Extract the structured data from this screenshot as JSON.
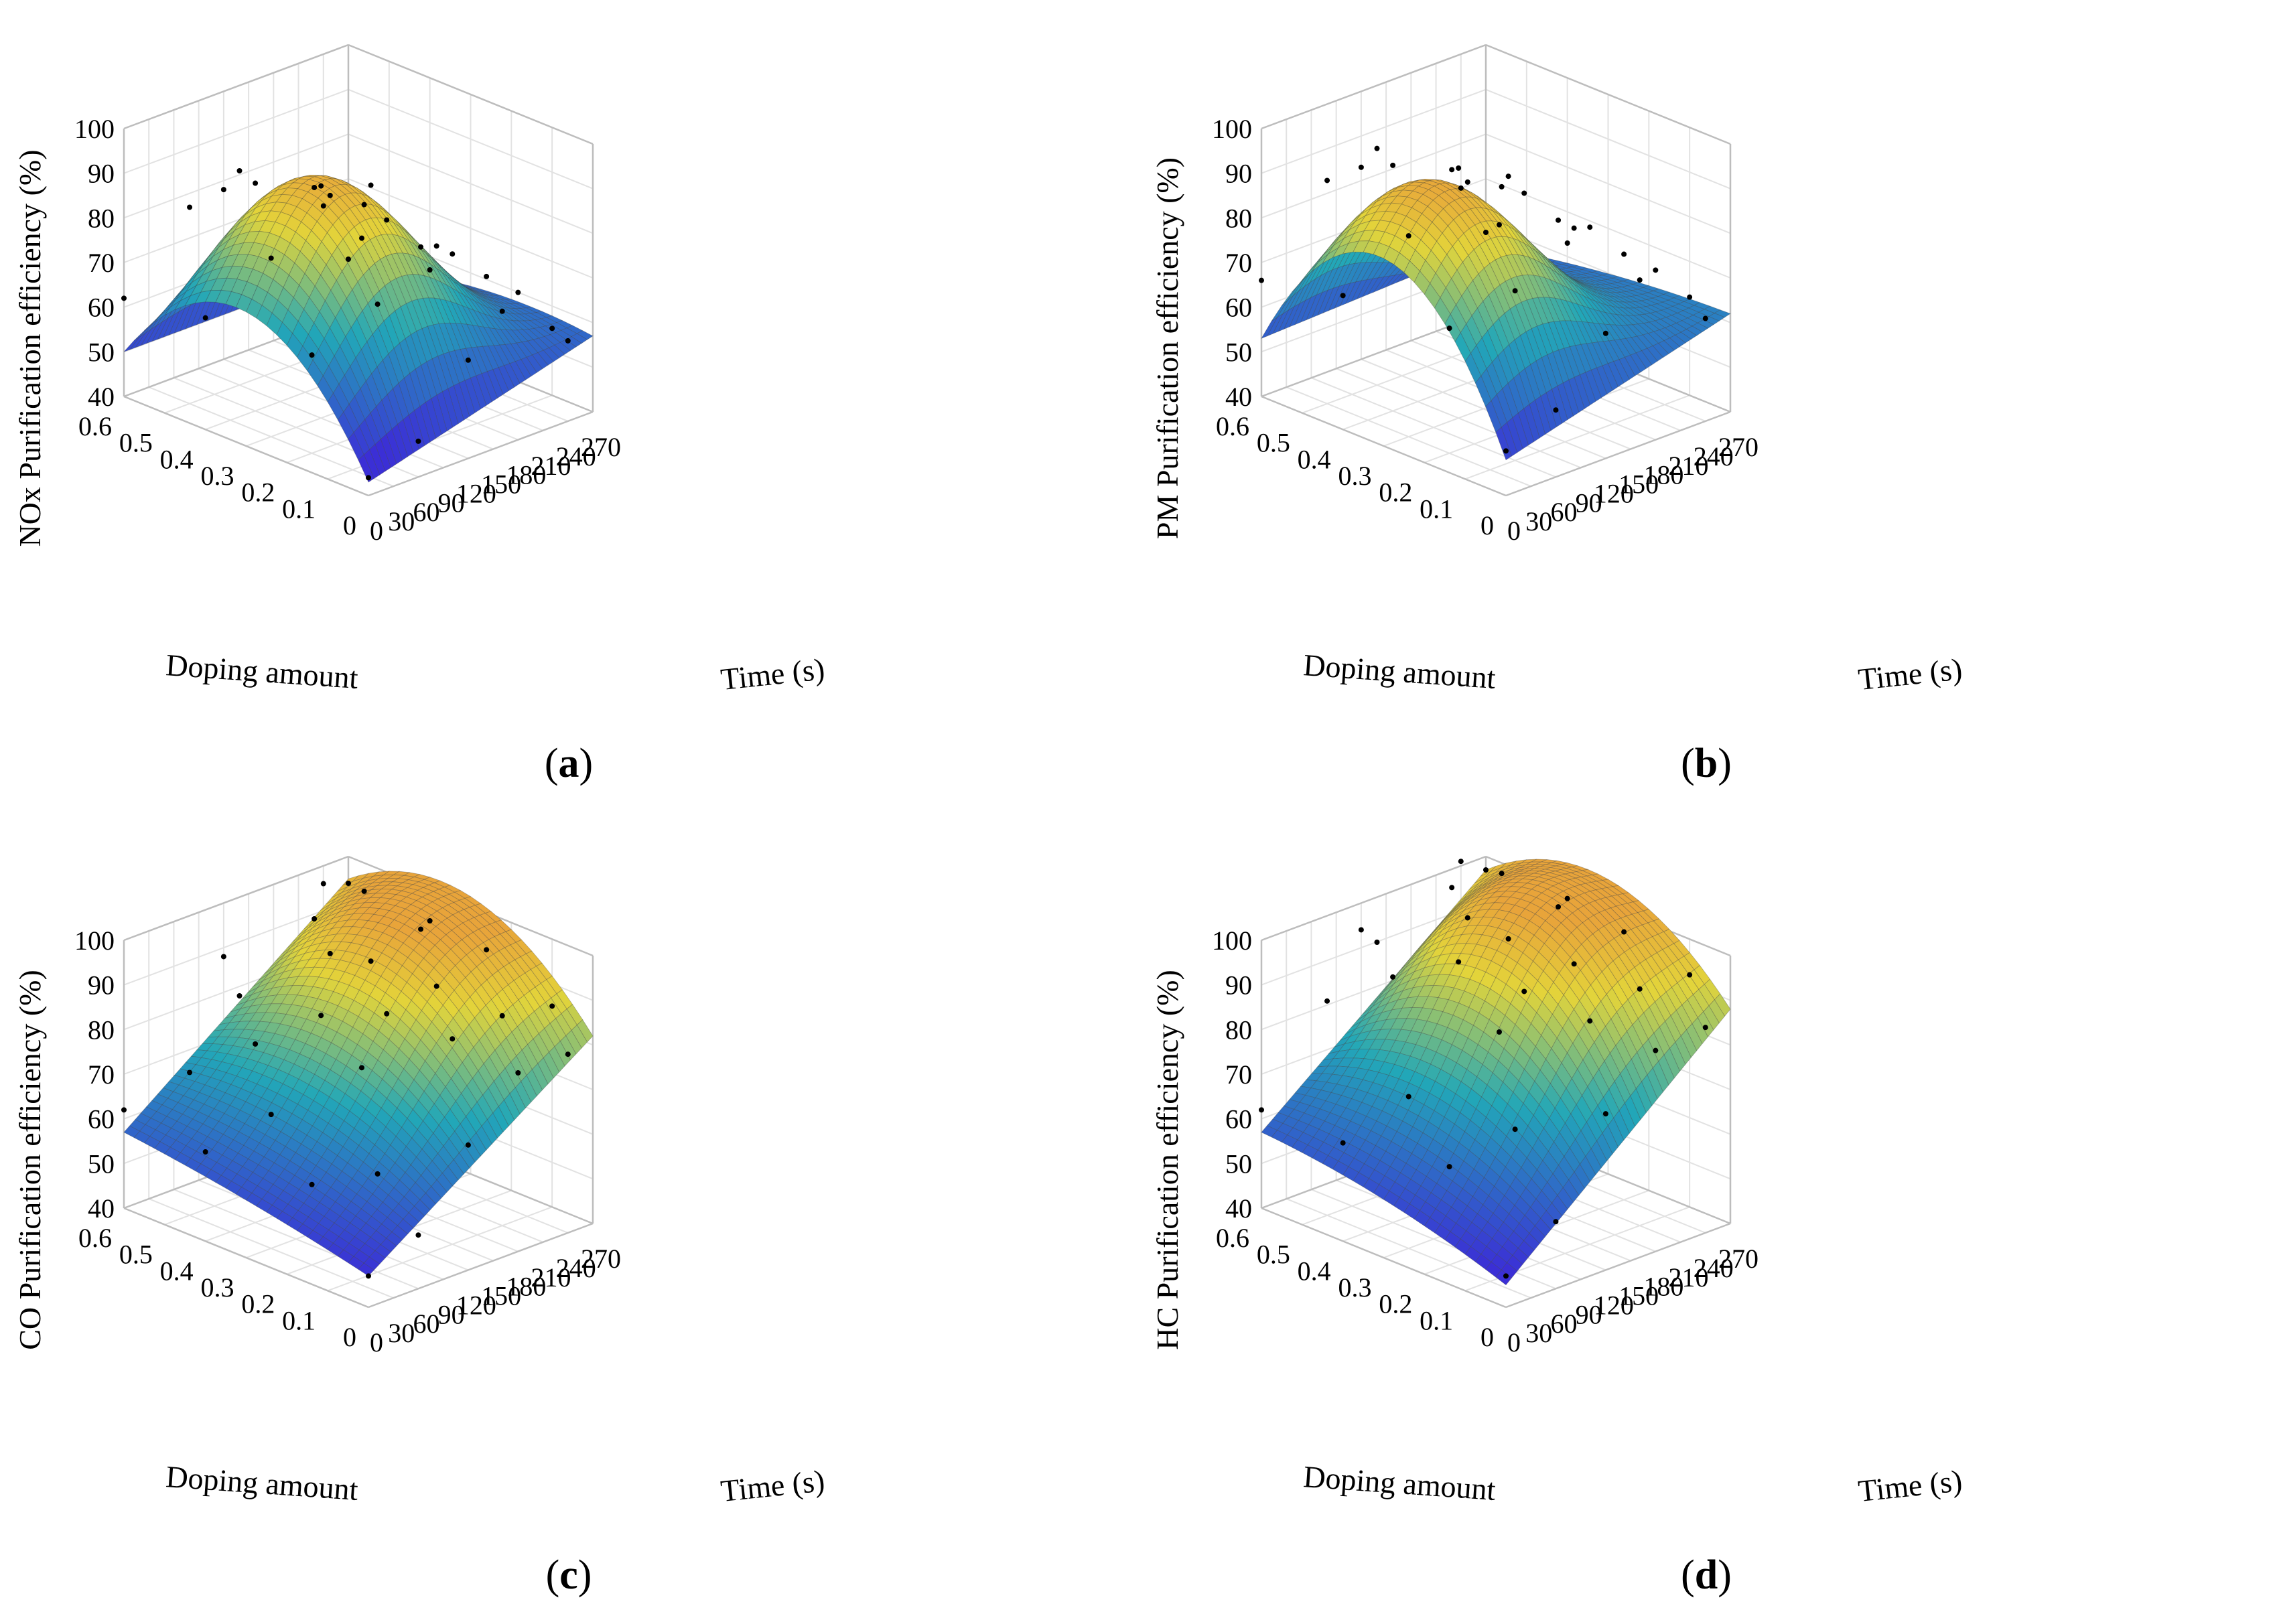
{
  "figure": {
    "colors": {
      "low": "#3b2fd6",
      "mid": "#22a7b8",
      "high": "#e3d43a",
      "peak": "#e8a43a",
      "box": "#bdbdbd",
      "grid": "#e2e2e2",
      "point": "#000000"
    },
    "panels": [
      {
        "id": "a",
        "label": "a",
        "chart_data": {
          "type": "surface3d",
          "title": "",
          "zlabel": "NOx Purification efficiency (%)",
          "xlabel": "Doping amount",
          "ylabel": "Time (s)",
          "x_ticks": [
            "0.6",
            "0.5",
            "0.4",
            "0.3",
            "0.2",
            "0.1",
            "0"
          ],
          "y_ticks": [
            "0",
            "30",
            "60",
            "90",
            "120",
            "150",
            "180",
            "210",
            "240",
            "270"
          ],
          "z_ticks": [
            "40",
            "50",
            "60",
            "70",
            "80",
            "90",
            "100"
          ],
          "xlim": [
            0,
            0.6
          ],
          "ylim": [
            0,
            270
          ],
          "zlim": [
            40,
            100
          ],
          "corner_values": {
            "x06_t0": 50,
            "x0_t0": 43,
            "x06_t270": 50,
            "x0_t270": 57
          },
          "peak": {
            "x": 0.3,
            "t": 90,
            "z": 93
          },
          "t_peak": 90,
          "x_peak": 0.3,
          "scatter": [
            [
              0.6,
              0,
              62
            ],
            [
              0.5,
              30,
              84
            ],
            [
              0.4,
              60,
              91
            ],
            [
              0.3,
              90,
              92
            ],
            [
              0.2,
              120,
              86
            ],
            [
              0.1,
              150,
              80
            ],
            [
              0,
              180,
              73
            ],
            [
              0.5,
              90,
              88
            ],
            [
              0.4,
              150,
              82
            ],
            [
              0.3,
              210,
              70
            ],
            [
              0.2,
              240,
              65
            ],
            [
              0.1,
              60,
              75
            ],
            [
              0,
              120,
              62
            ],
            [
              0.5,
              180,
              78
            ],
            [
              0.4,
              270,
              57
            ],
            [
              0.3,
              30,
              80
            ],
            [
              0.2,
              30,
              62
            ],
            [
              0.1,
              270,
              55
            ],
            [
              0,
              60,
              48
            ],
            [
              0.6,
              120,
              78
            ],
            [
              0.6,
              240,
              66
            ],
            [
              0.2,
              180,
              76
            ],
            [
              0.5,
              240,
              70
            ],
            [
              0.1,
              210,
              63
            ],
            [
              0.3,
              150,
              88
            ],
            [
              0,
              240,
              58
            ],
            [
              0.4,
              0,
              65
            ],
            [
              0.2,
              90,
              84
            ],
            [
              0,
              0,
              44
            ],
            [
              0.6,
              270,
              52
            ]
          ]
        }
      },
      {
        "id": "b",
        "label": "b",
        "chart_data": {
          "type": "surface3d",
          "title": "",
          "zlabel": "PM Purification efficiency (%)",
          "xlabel": "Doping amount",
          "ylabel": "Time (s)",
          "x_ticks": [
            "0.6",
            "0.5",
            "0.4",
            "0.3",
            "0.2",
            "0.1",
            "0"
          ],
          "y_ticks": [
            "0",
            "30",
            "60",
            "90",
            "120",
            "150",
            "180",
            "210",
            "240",
            "270"
          ],
          "z_ticks": [
            "40",
            "50",
            "60",
            "70",
            "80",
            "90",
            "100"
          ],
          "xlim": [
            0,
            0.6
          ],
          "ylim": [
            0,
            270
          ],
          "zlim": [
            40,
            100
          ],
          "corner_values": {
            "x06_t0": 53,
            "x0_t0": 48,
            "x06_t270": 55,
            "x0_t270": 62
          },
          "peak": {
            "x": 0.35,
            "t": 60,
            "z": 94
          },
          "t_peak": 60,
          "x_peak": 0.35,
          "scatter": [
            [
              0.6,
              0,
              66
            ],
            [
              0.5,
              30,
              90
            ],
            [
              0.4,
              60,
              95
            ],
            [
              0.3,
              90,
              96
            ],
            [
              0.2,
              120,
              92
            ],
            [
              0.1,
              150,
              86
            ],
            [
              0,
              180,
              78
            ],
            [
              0.5,
              90,
              93
            ],
            [
              0.4,
              150,
              85
            ],
            [
              0.3,
              210,
              76
            ],
            [
              0.2,
              240,
              70
            ],
            [
              0.1,
              60,
              78
            ],
            [
              0,
              120,
              68
            ],
            [
              0.5,
              180,
              82
            ],
            [
              0.4,
              270,
              63
            ],
            [
              0.3,
              30,
              85
            ],
            [
              0.2,
              30,
              68
            ],
            [
              0.1,
              270,
              62
            ],
            [
              0,
              60,
              55
            ],
            [
              0.6,
              120,
              83
            ],
            [
              0.6,
              240,
              70
            ],
            [
              0.2,
              180,
              80
            ],
            [
              0.5,
              240,
              74
            ],
            [
              0.1,
              210,
              70
            ],
            [
              0.3,
              150,
              90
            ],
            [
              0,
              240,
              63
            ],
            [
              0.4,
              0,
              70
            ],
            [
              0.2,
              90,
              87
            ],
            [
              0,
              0,
              50
            ],
            [
              0.6,
              270,
              58
            ]
          ]
        }
      },
      {
        "id": "c",
        "label": "c",
        "chart_data": {
          "type": "surface3d",
          "title": "",
          "zlabel": "CO Purification efficiency (%)",
          "xlabel": "Doping amount",
          "ylabel": "Time (s)",
          "x_ticks": [
            "0.6",
            "0.5",
            "0.4",
            "0.3",
            "0.2",
            "0.1",
            "0"
          ],
          "y_ticks": [
            "0",
            "30",
            "60",
            "90",
            "120",
            "150",
            "180",
            "210",
            "240",
            "270"
          ],
          "z_ticks": [
            "40",
            "50",
            "60",
            "70",
            "80",
            "90",
            "100"
          ],
          "xlim": [
            0,
            0.6
          ],
          "ylim": [
            0,
            270
          ],
          "zlim": [
            40,
            100
          ],
          "corner_values": {
            "x06_t0": 57,
            "x0_t0": 47,
            "x06_t270": 95,
            "x0_t270": 82
          },
          "peak": {
            "x": 0.35,
            "t": 200,
            "z": 99
          },
          "t_peak": 200,
          "x_peak": 0.35,
          "scatter": [
            [
              0.6,
              0,
              62
            ],
            [
              0.5,
              30,
              72
            ],
            [
              0.4,
              60,
              80
            ],
            [
              0.3,
              90,
              88
            ],
            [
              0.2,
              120,
              90
            ],
            [
              0.1,
              150,
              86
            ],
            [
              0,
              180,
              80
            ],
            [
              0.5,
              90,
              85
            ],
            [
              0.4,
              150,
              94
            ],
            [
              0.3,
              210,
              99
            ],
            [
              0.2,
              240,
              96
            ],
            [
              0.1,
              60,
              62
            ],
            [
              0,
              120,
              68
            ],
            [
              0.5,
              180,
              96
            ],
            [
              0.4,
              270,
              93
            ],
            [
              0.3,
              30,
              70
            ],
            [
              0.2,
              30,
              58
            ],
            [
              0.1,
              270,
              85
            ],
            [
              0,
              60,
              52
            ],
            [
              0.6,
              120,
              88
            ],
            [
              0.6,
              240,
              96
            ],
            [
              0.2,
              180,
              92
            ],
            [
              0.5,
              240,
              98
            ],
            [
              0.1,
              210,
              87
            ],
            [
              0.3,
              150,
              96
            ],
            [
              0,
              240,
              80
            ],
            [
              0.4,
              0,
              60
            ],
            [
              0.2,
              90,
              80
            ],
            [
              0,
              0,
              47
            ],
            [
              0.6,
              270,
              94
            ]
          ]
        }
      },
      {
        "id": "d",
        "label": "d",
        "chart_data": {
          "type": "surface3d",
          "title": "",
          "zlabel": "HC Purification efficiency (%)",
          "xlabel": "Doping amount",
          "ylabel": "Time (s)",
          "x_ticks": [
            "0.6",
            "0.5",
            "0.4",
            "0.3",
            "0.2",
            "0.1",
            "0"
          ],
          "y_ticks": [
            "0",
            "30",
            "60",
            "90",
            "120",
            "150",
            "180",
            "210",
            "240",
            "270"
          ],
          "z_ticks": [
            "40",
            "50",
            "60",
            "70",
            "80",
            "90",
            "100"
          ],
          "xlim": [
            0,
            0.6
          ],
          "ylim": [
            0,
            270
          ],
          "zlim": [
            40,
            100
          ],
          "corner_values": {
            "x06_t0": 57,
            "x0_t0": 45,
            "x06_t270": 97,
            "x0_t270": 88
          },
          "peak": {
            "x": 0.3,
            "t": 180,
            "z": 104
          },
          "t_peak": 180,
          "x_peak": 0.3,
          "scatter": [
            [
              0.6,
              0,
              62
            ],
            [
              0.5,
              30,
              88
            ],
            [
              0.4,
              60,
              95
            ],
            [
              0.3,
              90,
              100
            ],
            [
              0.2,
              120,
              95
            ],
            [
              0.1,
              150,
              90
            ],
            [
              0,
              180,
              85
            ],
            [
              0.5,
              90,
              97
            ],
            [
              0.4,
              150,
              102
            ],
            [
              0.3,
              210,
              104
            ],
            [
              0.2,
              240,
              100
            ],
            [
              0.1,
              60,
              72
            ],
            [
              0,
              120,
              75
            ],
            [
              0.5,
              180,
              103
            ],
            [
              0.4,
              270,
              98
            ],
            [
              0.3,
              30,
              74
            ],
            [
              0.2,
              30,
              62
            ],
            [
              0.1,
              270,
              92
            ],
            [
              0,
              60,
              55
            ],
            [
              0.6,
              120,
              94
            ],
            [
              0.6,
              240,
              101
            ],
            [
              0.2,
              180,
              97
            ],
            [
              0.5,
              240,
              102
            ],
            [
              0.1,
              210,
              93
            ],
            [
              0.3,
              150,
              101
            ],
            [
              0,
              240,
              86
            ],
            [
              0.4,
              0,
              62
            ],
            [
              0.2,
              90,
              88
            ],
            [
              0,
              0,
              47
            ],
            [
              0.6,
              270,
              97
            ]
          ]
        }
      }
    ]
  }
}
